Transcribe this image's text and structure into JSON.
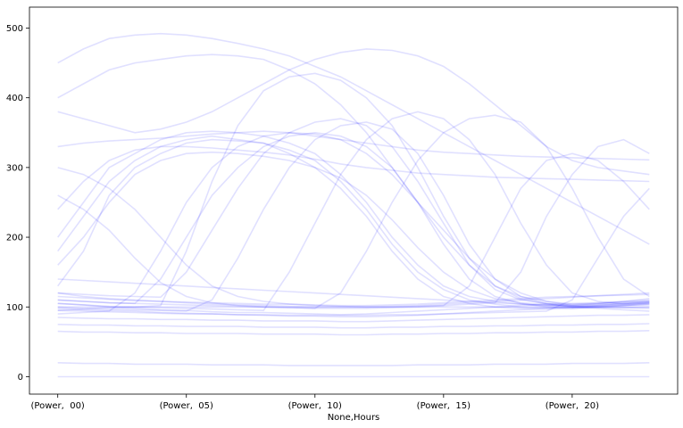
{
  "chart_data": {
    "type": "line",
    "title": "",
    "xlabel": "None,Hours",
    "ylabel": "",
    "x": [
      0,
      1,
      2,
      3,
      4,
      5,
      6,
      7,
      8,
      9,
      10,
      11,
      12,
      13,
      14,
      15,
      16,
      17,
      18,
      19,
      20,
      21,
      22,
      23
    ],
    "xticks": [
      0,
      5,
      10,
      15,
      20
    ],
    "xticklabels": [
      "(Power,  00)",
      "(Power,  05)",
      "(Power,  10)",
      "(Power,  15)",
      "(Power,  20)"
    ],
    "xlim": [
      -1.1,
      24.1
    ],
    "ylim": [
      -25,
      530
    ],
    "yticks": [
      0,
      100,
      200,
      300,
      400,
      500
    ],
    "yticklabels": [
      "0",
      "100",
      "200",
      "300",
      "400",
      "500"
    ],
    "grid": false,
    "legend": false,
    "line_color": "#0000ff",
    "line_alpha": 0.04,
    "series_note": "several hundred overlapping daily power profiles",
    "series": [
      {
        "values": [
          105,
          103,
          100,
          98,
          96,
          95,
          93,
          92,
          92,
          91,
          90,
          89,
          90,
          92,
          94,
          96,
          98,
          100,
          102,
          104,
          105,
          106,
          107,
          108
        ]
      },
      {
        "values": [
          98,
          96,
          95,
          94,
          92,
          91,
          90,
          89,
          88,
          87,
          87,
          86,
          86,
          87,
          88,
          90,
          92,
          94,
          96,
          98,
          100,
          101,
          102,
          103
        ]
      },
      {
        "values": [
          85,
          84,
          83,
          83,
          82,
          82,
          81,
          81,
          80,
          80,
          80,
          79,
          79,
          80,
          81,
          82,
          83,
          84,
          85,
          86,
          87,
          88,
          88,
          89
        ]
      },
      {
        "values": [
          115,
          113,
          111,
          109,
          108,
          107,
          106,
          105,
          104,
          104,
          103,
          102,
          102,
          103,
          104,
          106,
          108,
          110,
          112,
          114,
          115,
          116,
          117,
          118
        ]
      },
      {
        "values": [
          75,
          74,
          74,
          73,
          73,
          72,
          72,
          72,
          71,
          71,
          71,
          70,
          70,
          71,
          71,
          72,
          72,
          73,
          73,
          74,
          74,
          75,
          75,
          76
        ]
      },
      {
        "values": [
          180,
          230,
          280,
          310,
          330,
          340,
          345,
          340,
          335,
          320,
          300,
          270,
          230,
          180,
          140,
          115,
          105,
          100,
          98,
          97,
          98,
          100,
          102,
          105
        ]
      },
      {
        "values": [
          200,
          250,
          300,
          320,
          340,
          350,
          352,
          350,
          345,
          335,
          320,
          290,
          250,
          200,
          160,
          130,
          115,
          108,
          104,
          102,
          103,
          105,
          108,
          110
        ]
      },
      {
        "values": [
          130,
          180,
          260,
          300,
          320,
          335,
          340,
          338,
          335,
          325,
          310,
          280,
          240,
          190,
          150,
          125,
          110,
          104,
          100,
          99,
          100,
          102,
          104,
          106
        ]
      },
      {
        "values": [
          110,
          108,
          106,
          105,
          140,
          200,
          260,
          300,
          330,
          345,
          350,
          345,
          330,
          300,
          250,
          190,
          140,
          115,
          105,
          100,
          98,
          100,
          102,
          104
        ]
      },
      {
        "values": [
          120,
          118,
          116,
          115,
          114,
          150,
          210,
          270,
          320,
          350,
          365,
          370,
          360,
          330,
          280,
          220,
          160,
          125,
          110,
          105,
          102,
          104,
          106,
          108
        ]
      },
      {
        "values": [
          100,
          98,
          97,
          96,
          95,
          94,
          110,
          170,
          240,
          300,
          340,
          360,
          365,
          355,
          320,
          260,
          190,
          140,
          115,
          105,
          100,
          102,
          104,
          106
        ]
      },
      {
        "values": [
          105,
          103,
          101,
          100,
          99,
          98,
          97,
          96,
          95,
          150,
          220,
          290,
          340,
          370,
          380,
          370,
          340,
          290,
          220,
          160,
          120,
          108,
          104,
          106
        ]
      },
      {
        "values": [
          110,
          108,
          106,
          105,
          104,
          103,
          102,
          101,
          100,
          99,
          98,
          120,
          180,
          250,
          310,
          350,
          370,
          375,
          365,
          330,
          270,
          200,
          140,
          115
        ]
      },
      {
        "values": [
          300,
          290,
          270,
          240,
          200,
          160,
          130,
          115,
          108,
          104,
          102,
          101,
          100,
          100,
          101,
          102,
          130,
          200,
          270,
          310,
          320,
          310,
          280,
          240
        ]
      },
      {
        "values": [
          260,
          240,
          210,
          170,
          135,
          115,
          106,
          102,
          100,
          99,
          98,
          98,
          98,
          99,
          100,
          102,
          104,
          106,
          150,
          230,
          290,
          330,
          340,
          320
        ]
      },
      {
        "values": [
          95,
          94,
          93,
          92,
          91,
          90,
          90,
          89,
          89,
          88,
          88,
          88,
          88,
          89,
          89,
          90,
          91,
          92,
          93,
          94,
          110,
          170,
          230,
          270
        ]
      },
      {
        "values": [
          330,
          335,
          338,
          340,
          342,
          345,
          348,
          350,
          352,
          350,
          345,
          340,
          335,
          330,
          325,
          322,
          320,
          318,
          316,
          315,
          314,
          313,
          312,
          311
        ]
      },
      {
        "values": [
          400,
          420,
          440,
          450,
          455,
          460,
          462,
          460,
          455,
          440,
          420,
          390,
          350,
          300,
          250,
          200,
          160,
          130,
          115,
          108,
          104,
          105,
          108,
          112
        ]
      },
      {
        "values": [
          450,
          470,
          485,
          490,
          492,
          490,
          485,
          478,
          470,
          460,
          445,
          430,
          410,
          390,
          370,
          350,
          330,
          310,
          290,
          270,
          250,
          230,
          210,
          190
        ]
      },
      {
        "values": [
          380,
          370,
          360,
          350,
          355,
          365,
          380,
          400,
          420,
          440,
          455,
          465,
          470,
          468,
          460,
          445,
          420,
          390,
          360,
          330,
          310,
          300,
          295,
          290
        ]
      },
      {
        "values": [
          20,
          19,
          19,
          18,
          18,
          18,
          17,
          17,
          17,
          16,
          16,
          16,
          16,
          16,
          17,
          17,
          17,
          18,
          18,
          18,
          19,
          19,
          19,
          20
        ]
      },
      {
        "values": [
          0,
          0,
          0,
          0,
          0,
          0,
          0,
          0,
          0,
          0,
          0,
          0,
          0,
          0,
          0,
          0,
          0,
          0,
          0,
          0,
          0,
          0,
          0,
          0
        ]
      },
      {
        "values": [
          240,
          280,
          310,
          325,
          330,
          330,
          328,
          325,
          322,
          318,
          312,
          305,
          300,
          296,
          292,
          290,
          288,
          286,
          285,
          284,
          283,
          282,
          281,
          280
        ]
      },
      {
        "values": [
          90,
          92,
          94,
          120,
          180,
          250,
          300,
          330,
          345,
          350,
          348,
          340,
          320,
          290,
          250,
          210,
          170,
          140,
          120,
          108,
          102,
          100,
          99,
          98
        ]
      },
      {
        "values": [
          100,
          100,
          100,
          100,
          100,
          100,
          100,
          100,
          100,
          100,
          100,
          100,
          100,
          100,
          100,
          100,
          100,
          100,
          100,
          100,
          100,
          100,
          100,
          100
        ]
      },
      {
        "values": [
          160,
          200,
          250,
          290,
          310,
          320,
          322,
          320,
          316,
          310,
          300,
          285,
          260,
          225,
          185,
          150,
          125,
          112,
          106,
          103,
          102,
          103,
          105,
          108
        ]
      },
      {
        "values": [
          120,
          115,
          112,
          110,
          108,
          106,
          104,
          103,
          102,
          101,
          100,
          100,
          100,
          101,
          102,
          104,
          106,
          108,
          110,
          112,
          114,
          116,
          118,
          120
        ]
      },
      {
        "values": [
          65,
          64,
          64,
          63,
          63,
          62,
          62,
          62,
          61,
          61,
          61,
          60,
          60,
          61,
          61,
          62,
          62,
          63,
          63,
          64,
          64,
          65,
          65,
          66
        ]
      },
      {
        "values": [
          95,
          97,
          99,
          100,
          102,
          180,
          280,
          360,
          410,
          430,
          435,
          425,
          400,
          360,
          300,
          230,
          170,
          130,
          112,
          104,
          100,
          99,
          99,
          100
        ]
      },
      {
        "values": [
          140,
          138,
          136,
          134,
          132,
          130,
          128,
          126,
          124,
          122,
          120,
          118,
          116,
          114,
          112,
          110,
          108,
          106,
          104,
          102,
          100,
          98,
          96,
          94
        ]
      }
    ]
  }
}
